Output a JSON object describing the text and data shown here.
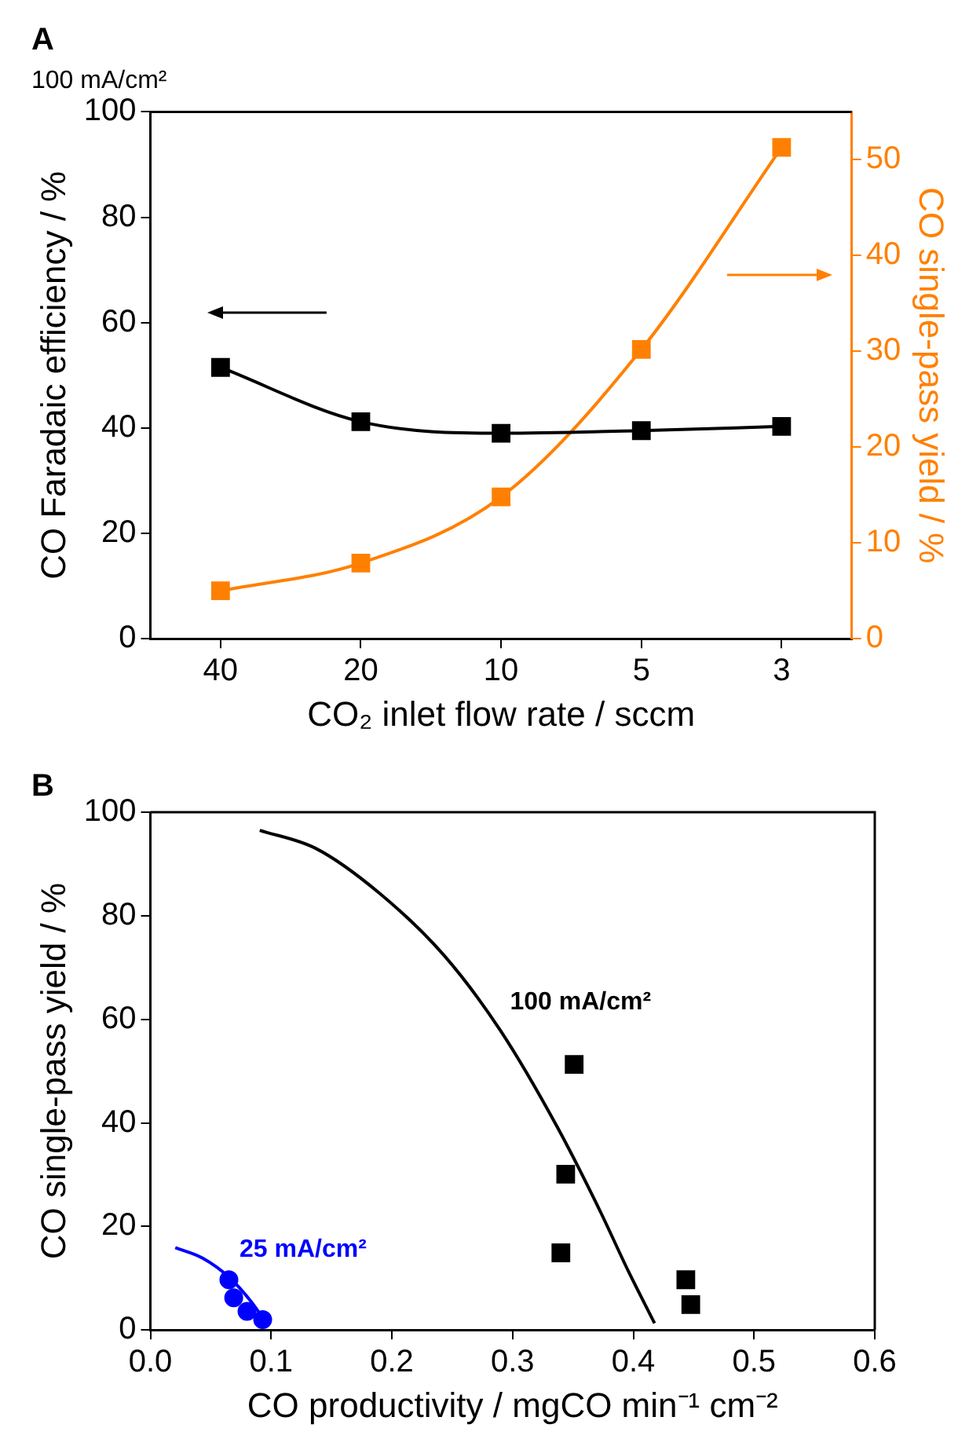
{
  "chart_data": [
    {
      "type": "line",
      "title": "A",
      "subtitle": "100 mA/cm²",
      "xlabel": "CO₂ inlet flow rate / sccm",
      "ylabel": "CO Faradaic efficiency / %",
      "y2label": "CO single-pass yield / %",
      "categories": [
        "40",
        "20",
        "10",
        "5",
        "3"
      ],
      "series": [
        {
          "color": "#000000",
          "values": [
            51.5,
            41.2,
            39,
            39.5,
            40.3
          ]
        },
        {
          "color": "#ff8000",
          "axis": "y2",
          "values": [
            5,
            7.9,
            14.8,
            30.2,
            51.3
          ]
        }
      ],
      "ylim": [
        0,
        100
      ],
      "yticks": [
        0,
        20,
        40,
        60,
        80,
        100
      ],
      "y2lim": [
        0,
        55
      ],
      "y2ticks": [
        0,
        10,
        20,
        30,
        40,
        50
      ],
      "marker": "square",
      "grid": false,
      "legend": false
    },
    {
      "type": "scatter",
      "title": "B",
      "xlabel": "CO productivity / mgCO min⁻¹ cm⁻²",
      "ylabel": "CO single-pass yield / %",
      "series": [
        {
          "type": "line",
          "name": "100 mA/cm²",
          "color": "#000000",
          "marker": "none",
          "x": [
            0.0906,
            0.137,
            0.19,
            0.243,
            0.29,
            0.337,
            0.372,
            0.396,
            0.4176
          ],
          "values": [
            96.5,
            93,
            84.3,
            72.4,
            57.8,
            39.2,
            23.2,
            11.3,
            1.3
          ]
        },
        {
          "type": "line",
          "name": "25 mA/cm²",
          "color": "#0000ff",
          "marker": "none",
          "x": [
            0.0206,
            0.043,
            0.066,
            0.084,
            0.096
          ],
          "values": [
            15.9,
            13.9,
            10,
            5.3,
            1.3
          ]
        },
        {
          "type": "scatter",
          "color": "#000000",
          "marker": "square",
          "x": [
            0.351,
            0.344,
            0.34,
            0.4435,
            0.4476
          ],
          "values": [
            51.3,
            30.1,
            14.9,
            9.7,
            4.9
          ]
        },
        {
          "type": "scatter",
          "color": "#0000ff",
          "marker": "circle",
          "x": [
            0.065,
            0.069,
            0.08,
            0.093
          ],
          "values": [
            9.7,
            6.2,
            3.6,
            2.0
          ]
        }
      ],
      "xlim": [
        0,
        0.6
      ],
      "xticks": [
        {
          "value": 0,
          "label": "0.0"
        },
        0.1,
        0.2,
        0.3,
        0.4,
        0.5,
        0.6
      ],
      "ylim": [
        0,
        100
      ],
      "yticks": [
        0,
        20,
        40,
        60,
        80,
        100
      ],
      "grid": false,
      "legend": false
    }
  ]
}
